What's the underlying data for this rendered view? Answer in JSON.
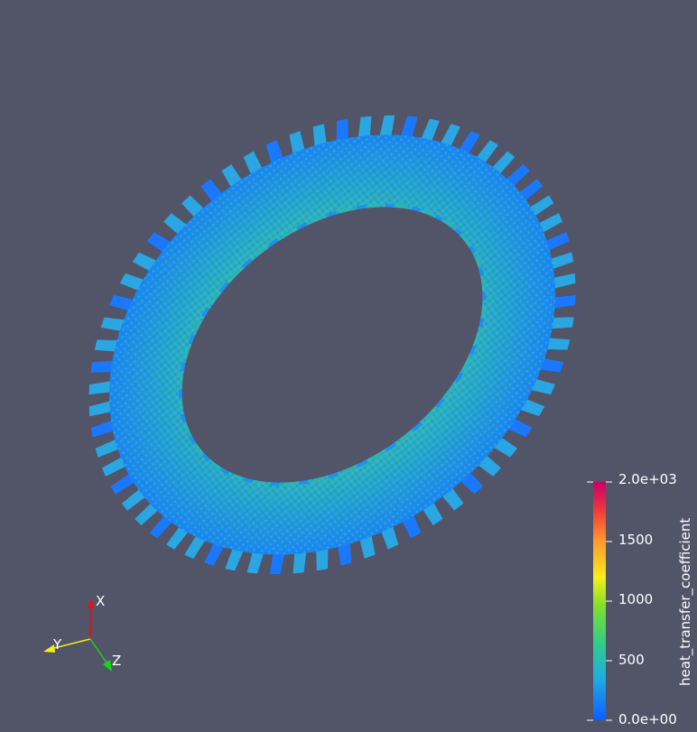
{
  "scene": {
    "object": "gear-ring-mesh",
    "colors": {
      "background": "#525468",
      "ring_base": "#3fb4b0",
      "ring_low": "#1a78ff",
      "ring_mid": "#35c39a"
    }
  },
  "colorbar": {
    "title": "heat_transfer_coefficient",
    "ticks": [
      "2.0e+03",
      "1500",
      "1000",
      "500",
      "0.0e+00"
    ],
    "range": [
      0,
      2000
    ],
    "colormap": [
      "#0a5eff",
      "#20c4b8",
      "#3ddc3f",
      "#f7ee1a",
      "#ff8a2a",
      "#e01a45",
      "#c7006b"
    ]
  },
  "orientation_axes": {
    "x_label": "X",
    "y_label": "Y",
    "z_label": "Z",
    "x_color": "#e0151a",
    "y_color": "#f2ee18",
    "z_color": "#18d418"
  }
}
